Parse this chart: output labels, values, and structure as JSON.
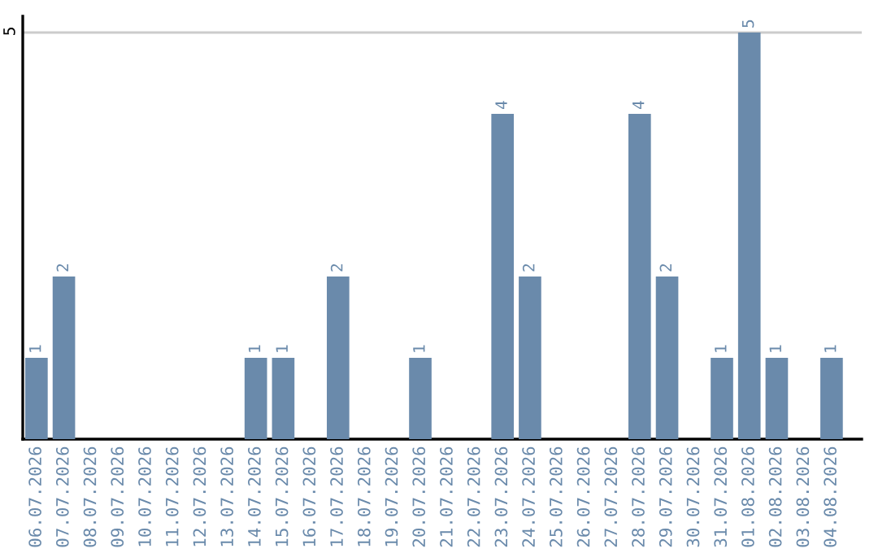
{
  "chart_data": {
    "type": "bar",
    "categories": [
      "06.07.2026",
      "07.07.2026",
      "08.07.2026",
      "09.07.2026",
      "10.07.2026",
      "11.07.2026",
      "12.07.2026",
      "13.07.2026",
      "14.07.2026",
      "15.07.2026",
      "16.07.2026",
      "17.07.2026",
      "18.07.2026",
      "19.07.2026",
      "20.07.2026",
      "21.07.2026",
      "22.07.2026",
      "23.07.2026",
      "24.07.2026",
      "25.07.2026",
      "26.07.2026",
      "27.07.2026",
      "28.07.2026",
      "29.07.2026",
      "30.07.2026",
      "31.07.2026",
      "01.08.2026",
      "02.08.2026",
      "03.08.2026",
      "04.08.2026"
    ],
    "values": [
      1,
      2,
      0,
      0,
      0,
      0,
      0,
      0,
      1,
      1,
      0,
      2,
      0,
      0,
      1,
      0,
      0,
      4,
      2,
      0,
      0,
      0,
      4,
      2,
      0,
      1,
      5,
      1,
      0,
      1
    ],
    "value_labels": [
      "1",
      "2",
      null,
      null,
      null,
      null,
      null,
      null,
      "1",
      "1",
      null,
      "2",
      null,
      null,
      "1",
      null,
      null,
      "4",
      "2",
      null,
      null,
      null,
      "4",
      "2",
      null,
      "1",
      "5",
      "1",
      null,
      "1"
    ],
    "color": "#6a8aab",
    "ylim": [
      0,
      5.2
    ],
    "yticks": [
      5
    ],
    "grid": "y"
  }
}
